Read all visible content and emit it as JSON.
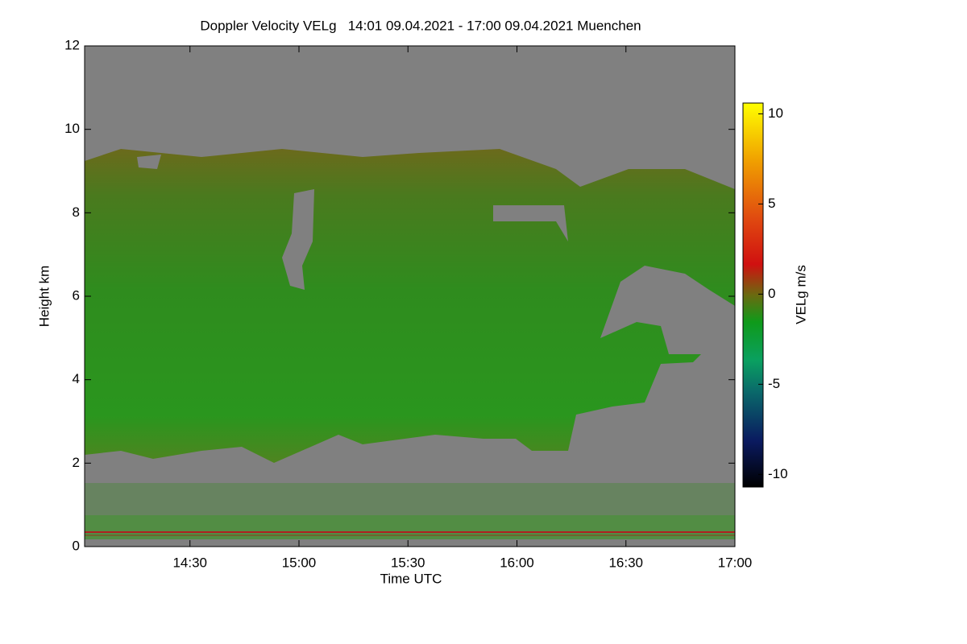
{
  "chart_data": {
    "type": "heatmap",
    "title": "Doppler Velocity VELg   14:01 09.04.2021 - 17:00 09.04.2021 Muenchen",
    "x_label": "Time UTC",
    "y_label": "Height km",
    "colorbar_label": "VELg m/s",
    "xlim": [
      841,
      1020
    ],
    "xticks": [
      {
        "value": 870,
        "label": "14:30"
      },
      {
        "value": 900,
        "label": "15:00"
      },
      {
        "value": 930,
        "label": "15:30"
      },
      {
        "value": 960,
        "label": "16:00"
      },
      {
        "value": 990,
        "label": "16:30"
      },
      {
        "value": 1020,
        "label": "17:00"
      }
    ],
    "ylim": [
      0,
      12
    ],
    "yticks": [
      0,
      2,
      4,
      6,
      8,
      10,
      12
    ],
    "clim": [
      -10.7,
      10.6
    ],
    "cticks": [
      -10,
      -5,
      0,
      5,
      10
    ],
    "background_color": "#808080"
  }
}
